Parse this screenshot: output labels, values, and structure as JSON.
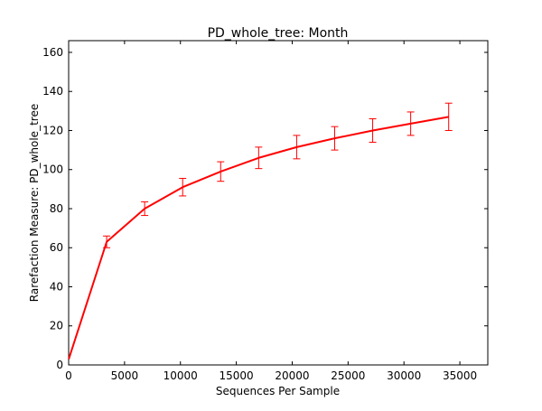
{
  "chart_data": {
    "type": "line",
    "title": "PD_whole_tree: Month",
    "xlabel": "Sequences Per Sample",
    "ylabel": "Rarefaction Measure: PD_whole_tree",
    "xlim": [
      0,
      37500
    ],
    "ylim": [
      0,
      166
    ],
    "xticks": [
      0,
      5000,
      10000,
      15000,
      20000,
      25000,
      30000,
      35000
    ],
    "yticks": [
      0,
      20,
      40,
      60,
      80,
      100,
      120,
      140,
      160
    ],
    "grid": false,
    "series": [
      {
        "color": "#ff0000",
        "points": [
          {
            "x": 10,
            "y": 3,
            "err": 0
          },
          {
            "x": 3400,
            "y": 63,
            "err": 3
          },
          {
            "x": 6800,
            "y": 80,
            "err": 3.5
          },
          {
            "x": 10200,
            "y": 91,
            "err": 4.5
          },
          {
            "x": 13600,
            "y": 99,
            "err": 5
          },
          {
            "x": 17000,
            "y": 106,
            "err": 5.5
          },
          {
            "x": 20400,
            "y": 111.5,
            "err": 6
          },
          {
            "x": 23800,
            "y": 116,
            "err": 6
          },
          {
            "x": 27200,
            "y": 120,
            "err": 6
          },
          {
            "x": 30600,
            "y": 123.5,
            "err": 6
          },
          {
            "x": 34000,
            "y": 127,
            "err": 7
          }
        ]
      }
    ]
  }
}
